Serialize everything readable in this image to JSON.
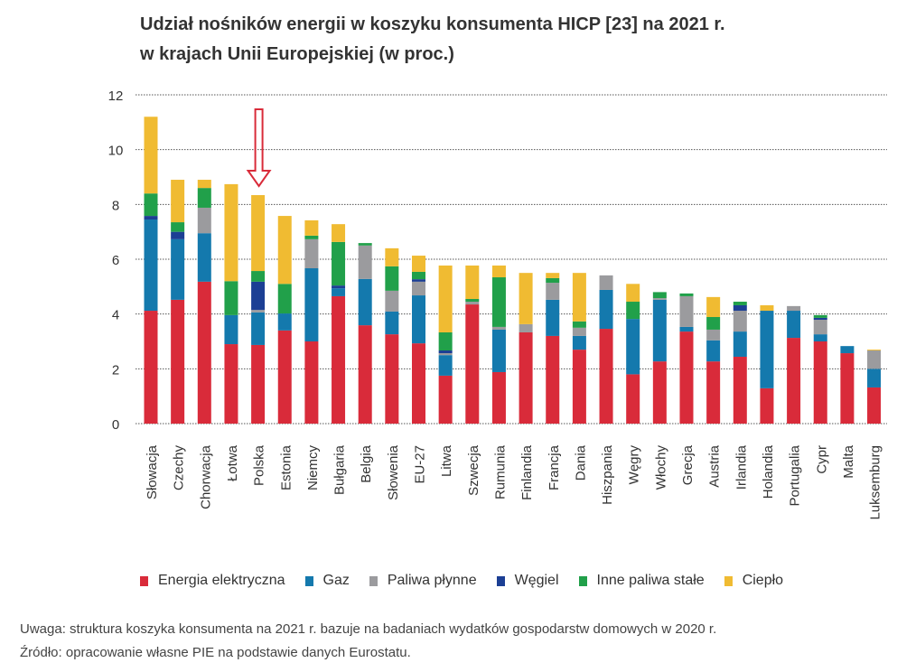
{
  "title_line1": "Udział nośników energii w koszyku konsumenta HICP [23] na 2021 r.",
  "title_line2": "w krajach Unii Europejskiej (w proc.)",
  "chart_data": {
    "type": "bar",
    "stacked": true,
    "title": "Udział nośników energii w koszyku konsumenta HICP [23] na 2021 r. w krajach Unii Europejskiej (w proc.)",
    "xlabel": "",
    "ylabel": "",
    "ylim": [
      0,
      12
    ],
    "yticks": [
      0,
      2,
      4,
      6,
      8,
      10,
      12
    ],
    "grid": true,
    "legend_position": "bottom",
    "highlighted_category": "Polska",
    "categories": [
      "Słowacja",
      "Czechy",
      "Chorwacja",
      "Łotwa",
      "Polska",
      "Estonia",
      "Niemcy",
      "Bułgaria",
      "Belgia",
      "Słowenia",
      "EU-27",
      "Litwa",
      "Szwecja",
      "Rumunia",
      "Finlandia",
      "Francja",
      "Dania",
      "Hiszpania",
      "Węgry",
      "Włochy",
      "Grecja",
      "Austria",
      "Irlandia",
      "Holandia",
      "Portugalia",
      "Cypr",
      "Malta",
      "Luksemburg"
    ],
    "series": [
      {
        "name": "Energia elektryczna",
        "color": "#d92b3a",
        "values": [
          4.12,
          4.52,
          5.18,
          2.9,
          2.87,
          3.4,
          3.0,
          4.65,
          3.59,
          3.26,
          2.93,
          1.75,
          4.35,
          1.88,
          3.33,
          3.2,
          2.7,
          3.46,
          1.8,
          2.27,
          3.36,
          2.27,
          2.44,
          1.29,
          3.13,
          3.0,
          2.57,
          1.32
        ]
      },
      {
        "name": "Gaz",
        "color": "#1479ad",
        "values": [
          3.33,
          2.21,
          1.77,
          1.06,
          1.19,
          0.62,
          2.67,
          0.29,
          1.69,
          0.83,
          1.75,
          0.75,
          0,
          1.55,
          0,
          1.32,
          0.5,
          1.42,
          2.02,
          2.25,
          0.17,
          0.77,
          0.92,
          2.83,
          0.99,
          0.26,
          0.26,
          0.68
        ]
      },
      {
        "name": "Paliwa płynne",
        "color": "#9b9b9e",
        "values": [
          0,
          0,
          0.93,
          0,
          0.09,
          0,
          1.06,
          0,
          1.22,
          0.76,
          0.5,
          0.07,
          0.1,
          0.1,
          0.3,
          0.62,
          0.3,
          0.53,
          0,
          0.06,
          1.12,
          0.39,
          0.76,
          0,
          0.17,
          0.53,
          0,
          0.67
        ]
      },
      {
        "name": "Węgiel",
        "color": "#1c3f94",
        "values": [
          0.13,
          0.27,
          0,
          0,
          1.03,
          0,
          0,
          0.1,
          0,
          0,
          0.09,
          0.1,
          0,
          0,
          0,
          0,
          0,
          0,
          0,
          0,
          0,
          0,
          0.2,
          0,
          0,
          0.07,
          0,
          0
        ]
      },
      {
        "name": "Inne paliwa stałe",
        "color": "#21a04a",
        "values": [
          0.82,
          0.35,
          0.72,
          1.24,
          0.39,
          1.08,
          0.13,
          1.59,
          0.09,
          0.89,
          0.27,
          0.66,
          0.1,
          1.81,
          0,
          0.17,
          0.23,
          0,
          0.63,
          0.22,
          0.1,
          0.46,
          0.13,
          0,
          0,
          0.1,
          0,
          0
        ]
      },
      {
        "name": "Ciepło",
        "color": "#f0bb32",
        "values": [
          2.8,
          1.55,
          0.3,
          3.54,
          2.77,
          2.48,
          0.56,
          0.65,
          0,
          0.66,
          0.59,
          2.44,
          1.22,
          0.43,
          1.87,
          0.19,
          1.77,
          0,
          0.65,
          0,
          0,
          0.73,
          0,
          0.2,
          0,
          0,
          0,
          0.03
        ]
      }
    ]
  },
  "notes": {
    "note": "Uwaga: struktura koszyka konsumenta na 2021 r. bazuje na badaniach wydatków gospodarstw domowych w 2020 r.",
    "source": "Źródło: opracowanie własne PIE na podstawie danych Eurostatu."
  },
  "colors": {
    "highlight_arrow": "#d92b3a",
    "grid": "#555555"
  }
}
